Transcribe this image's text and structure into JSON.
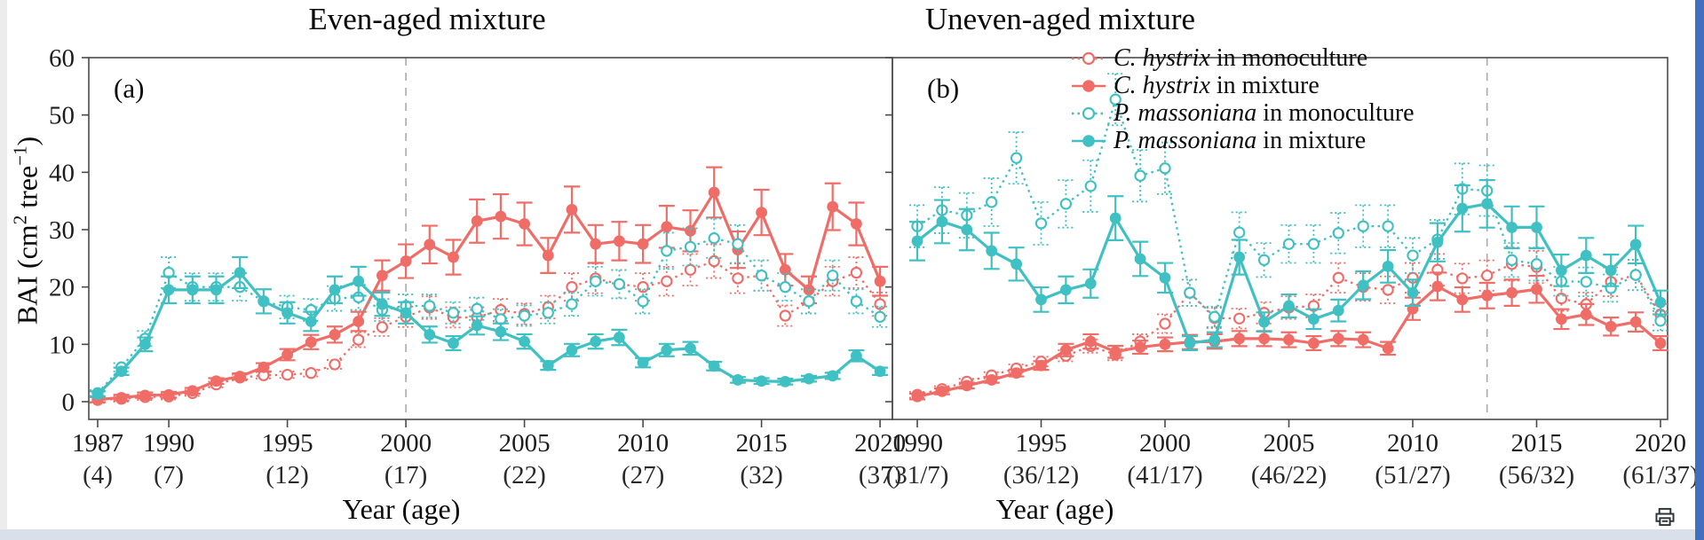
{
  "figure": {
    "titles": {
      "left": "Even-aged mixture",
      "right": "Uneven-aged mixture"
    },
    "panel_tags": {
      "left": "(a)",
      "right": "(b)"
    },
    "y_axis": {
      "label_parts": [
        {
          "t": "BAI (cm"
        },
        {
          "t": "2",
          "sup": true
        },
        {
          "t": " tree"
        },
        {
          "t": "−1",
          "sup": true
        },
        {
          "t": ")"
        }
      ],
      "ticks": [
        0,
        10,
        20,
        30,
        40,
        50,
        60
      ]
    },
    "x_axis_label": "Year (age)",
    "legend": {
      "items": [
        {
          "species": "C. hystrix",
          "rest": " in monoculture",
          "color": "#ef6c67",
          "marker": "open",
          "line": "dotted"
        },
        {
          "species": "C. hystrix",
          "rest": " in mixture",
          "color": "#ef6c67",
          "marker": "filled",
          "line": "solid"
        },
        {
          "species": "P. massoniana",
          "rest": " in monoculture",
          "color": "#3fc0c2",
          "marker": "open",
          "line": "dotted"
        },
        {
          "species": "P. massoniana",
          "rest": " in mixture",
          "color": "#3fc0c2",
          "marker": "filled",
          "line": "solid"
        }
      ]
    },
    "colors": {
      "c_hystrix": "#ef6c67",
      "p_massoniana": "#3fc0c2",
      "reference_line": "#ababab",
      "axis": "#4a4a4a",
      "tick_text": "#1c1c1c"
    },
    "print_icon": "printer"
  },
  "chart_data": [
    {
      "type": "line",
      "title": "Even-aged mixture",
      "panel_label": "(a)",
      "xlabel": "Year (age)",
      "ylabel": "BAI (cm2 tree-1)",
      "ylim": [
        0,
        60
      ],
      "grid": false,
      "reference_line_year": 2000,
      "x": [
        1987,
        1988,
        1989,
        1990,
        1991,
        1992,
        1993,
        1994,
        1995,
        1996,
        1997,
        1998,
        1999,
        2000,
        2001,
        2002,
        2003,
        2004,
        2005,
        2006,
        2007,
        2008,
        2009,
        2010,
        2011,
        2012,
        2013,
        2014,
        2015,
        2016,
        2017,
        2018,
        2019,
        2020
      ],
      "x_tick_years": [
        1987,
        1990,
        1995,
        2000,
        2005,
        2010,
        2015,
        2020
      ],
      "x_tick_ages": [
        "(4)",
        "(7)",
        "(12)",
        "(17)",
        "(22)",
        "(27)",
        "(32)",
        "(37)"
      ],
      "error_fraction": 0.12,
      "error_min": 0.5,
      "error_max": 4.5,
      "series": [
        {
          "name": "C. hystrix in monoculture",
          "color": "#ef6c67",
          "marker": "open",
          "line": "dotted",
          "values": [
            0.3,
            0.5,
            0.8,
            0.9,
            1.5,
            3.0,
            4.2,
            4.6,
            4.7,
            5.0,
            6.5,
            10.8,
            13.0,
            14.8,
            16.4,
            14.7,
            14.7,
            16.0,
            15.3,
            16.5,
            20.0,
            21.5,
            20.5,
            20.0,
            21.0,
            23.0,
            24.5,
            21.5,
            22.0,
            15.0,
            17.5,
            21.0,
            22.5,
            17.0
          ]
        },
        {
          "name": "C. hystrix in mixture",
          "color": "#ef6c67",
          "marker": "filled",
          "line": "solid",
          "values": [
            0.4,
            0.7,
            1.1,
            1.2,
            1.9,
            3.6,
            4.4,
            6.0,
            8.2,
            10.4,
            11.7,
            14.0,
            22.0,
            24.5,
            27.4,
            25.2,
            31.5,
            32.3,
            31.0,
            25.5,
            33.5,
            27.5,
            28.0,
            27.5,
            30.5,
            29.8,
            36.5,
            26.5,
            33.0,
            23.0,
            19.5,
            34.0,
            31.0,
            21.0
          ]
        },
        {
          "name": "P. massoniana in monoculture",
          "color": "#3fc0c2",
          "marker": "open",
          "line": "dotted",
          "values": [
            1.5,
            6.0,
            11.0,
            22.5,
            20.0,
            20.0,
            20.0,
            17.5,
            16.5,
            16.0,
            18.0,
            18.2,
            16.0,
            16.7,
            16.7,
            15.5,
            16.2,
            14.4,
            15.0,
            15.5,
            17.0,
            21.0,
            20.5,
            17.5,
            26.3,
            27.0,
            28.5,
            27.5,
            22.0,
            20.0,
            17.5,
            22.0,
            17.5,
            14.8
          ]
        },
        {
          "name": "P. massoniana in mixture",
          "color": "#3fc0c2",
          "marker": "filled",
          "line": "solid",
          "values": [
            1.3,
            5.3,
            10.0,
            19.5,
            19.5,
            19.5,
            22.5,
            17.5,
            15.5,
            14.0,
            19.5,
            21.0,
            17.0,
            15.5,
            11.7,
            10.2,
            13.3,
            12.2,
            10.5,
            6.3,
            9.0,
            10.5,
            11.2,
            6.8,
            9.0,
            9.3,
            6.2,
            3.8,
            3.6,
            3.5,
            4.0,
            4.5,
            8.0,
            5.3
          ]
        }
      ]
    },
    {
      "type": "line",
      "title": "Uneven-aged mixture",
      "panel_label": "(b)",
      "xlabel": "Year (age)",
      "ylabel": "BAI (cm2 tree-1)",
      "ylim": [
        0,
        60
      ],
      "grid": false,
      "reference_line_year": 2013,
      "x": [
        1990,
        1991,
        1992,
        1993,
        1994,
        1995,
        1996,
        1997,
        1998,
        1999,
        2000,
        2001,
        2002,
        2003,
        2004,
        2005,
        2006,
        2007,
        2008,
        2009,
        2010,
        2011,
        2012,
        2013,
        2014,
        2015,
        2016,
        2017,
        2018,
        2019,
        2020
      ],
      "x_tick_years": [
        1990,
        1995,
        2000,
        2005,
        2010,
        2015,
        2020
      ],
      "x_tick_ages": [
        "(31/7)",
        "(36/12)",
        "(41/17)",
        "(46/22)",
        "(51/27)",
        "(56/32)",
        "(61/37)"
      ],
      "error_fraction": 0.12,
      "error_min": 0.5,
      "error_max": 4.5,
      "series": [
        {
          "name": "C. hystrix in monoculture",
          "color": "#ef6c67",
          "marker": "open",
          "line": "dotted",
          "values": [
            1.2,
            2.2,
            3.5,
            4.6,
            5.8,
            7.0,
            8.0,
            9.7,
            8.2,
            10.5,
            13.6,
            19.0,
            14.6,
            14.5,
            15.5,
            16.4,
            16.7,
            21.6,
            20.0,
            19.5,
            21.6,
            23.0,
            21.5,
            22.0,
            24.0,
            23.5,
            18.0,
            17.0,
            20.9,
            22.1,
            15.2
          ]
        },
        {
          "name": "C. hystrix in mixture",
          "color": "#ef6c67",
          "marker": "filled",
          "line": "solid",
          "values": [
            0.9,
            1.8,
            2.8,
            3.8,
            5.0,
            6.3,
            9.0,
            10.5,
            8.7,
            9.5,
            10.0,
            10.4,
            10.5,
            11.0,
            11.0,
            10.8,
            10.2,
            11.0,
            10.8,
            9.3,
            16.2,
            20.1,
            17.8,
            18.5,
            19.0,
            19.6,
            14.4,
            15.2,
            13.1,
            13.9,
            10.2
          ]
        },
        {
          "name": "P. massoniana in monoculture",
          "color": "#3fc0c2",
          "marker": "open",
          "line": "dotted",
          "values": [
            30.6,
            33.4,
            32.5,
            34.8,
            42.5,
            31.1,
            34.5,
            37.6,
            52.7,
            39.4,
            40.7,
            19.0,
            14.8,
            29.5,
            24.7,
            27.5,
            27.5,
            29.4,
            30.6,
            30.6,
            25.5,
            28.3,
            37.1,
            36.8,
            24.7,
            24.0,
            21.0,
            20.9,
            19.8,
            22.1,
            14.1
          ]
        },
        {
          "name": "P. massoniana in mixture",
          "color": "#3fc0c2",
          "marker": "filled",
          "line": "solid",
          "values": [
            28.0,
            31.4,
            30.0,
            26.3,
            24.0,
            17.8,
            19.5,
            20.6,
            32.0,
            24.9,
            21.6,
            10.2,
            10.8,
            25.2,
            13.9,
            16.7,
            14.4,
            15.9,
            20.3,
            23.6,
            19.0,
            27.8,
            33.7,
            34.5,
            30.4,
            30.4,
            22.9,
            25.5,
            22.9,
            27.4,
            17.3
          ]
        }
      ]
    }
  ]
}
